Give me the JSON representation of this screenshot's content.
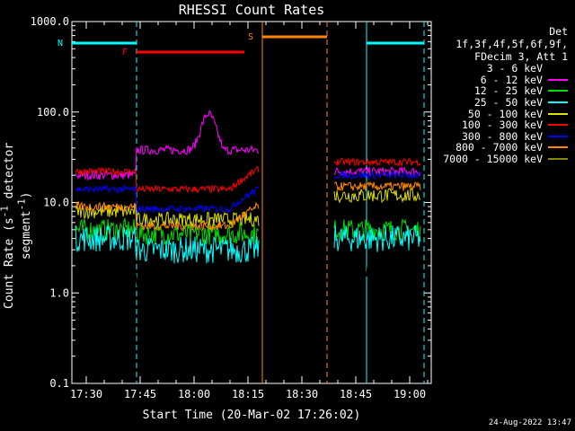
{
  "title": "RHESSI Count Rates",
  "footer_date": "24-Aug-2022 13:47",
  "legend": {
    "header_line1": "Det 1f,3f,4f,5f,6f,9f,",
    "header_line2": "FDecim 3, Att 1"
  },
  "chart_data": {
    "type": "line",
    "title": "RHESSI Count Rates",
    "xlabel": "Start Time (20-Mar-02 17:26:02)",
    "ylabel_main": "Count Rate (s",
    "ylabel_sup1": "-1",
    "ylabel_mid": " detector segment",
    "ylabel_sup2": "-1",
    "ylabel_end": ")",
    "y_scale": "log",
    "ylim": [
      0.1,
      1000
    ],
    "xlim": [
      "17:26",
      "19:06"
    ],
    "x_ticks": [
      "17:30",
      "17:45",
      "18:00",
      "18:15",
      "18:30",
      "18:45",
      "19:00"
    ],
    "y_ticks": [
      "0.1",
      "1.0",
      "10.0",
      "100.0",
      "1000.0"
    ],
    "series": [
      {
        "name": "3 - 6 keV",
        "color": "#000000"
      },
      {
        "name": "6 - 12 keV",
        "color": "#ff00ff"
      },
      {
        "name": "12 - 25 keV",
        "color": "#00dd00"
      },
      {
        "name": "25 - 50 keV",
        "color": "#00ffff"
      },
      {
        "name": "50 - 100 keV",
        "color": "#dddd00"
      },
      {
        "name": "100 - 300 keV",
        "color": "#ff0000"
      },
      {
        "name": "300 - 800 keV",
        "color": "#0000ff"
      },
      {
        "name": "800 - 7000 keV",
        "color": "#ff8800"
      },
      {
        "name": "7000 - 15000 keV",
        "color": "#888800"
      }
    ],
    "flag_bars": [
      {
        "label": "N",
        "color": "#00ffff",
        "segments": [
          [
            "17:26",
            "17:44"
          ],
          [
            "18:48",
            "19:04"
          ]
        ],
        "dashed_lines": [
          "17:44",
          "19:04"
        ],
        "solid_lines": [
          "18:48"
        ]
      },
      {
        "label": "F",
        "color": "#ff0000",
        "segments": [
          [
            "17:44",
            "18:14"
          ]
        ]
      },
      {
        "label": "S",
        "color": "#ff8800",
        "segments": [
          [
            "18:19",
            "18:37"
          ]
        ],
        "dashed_lines": [
          "18:37"
        ],
        "solid_lines": [
          "18:19"
        ]
      }
    ]
  }
}
